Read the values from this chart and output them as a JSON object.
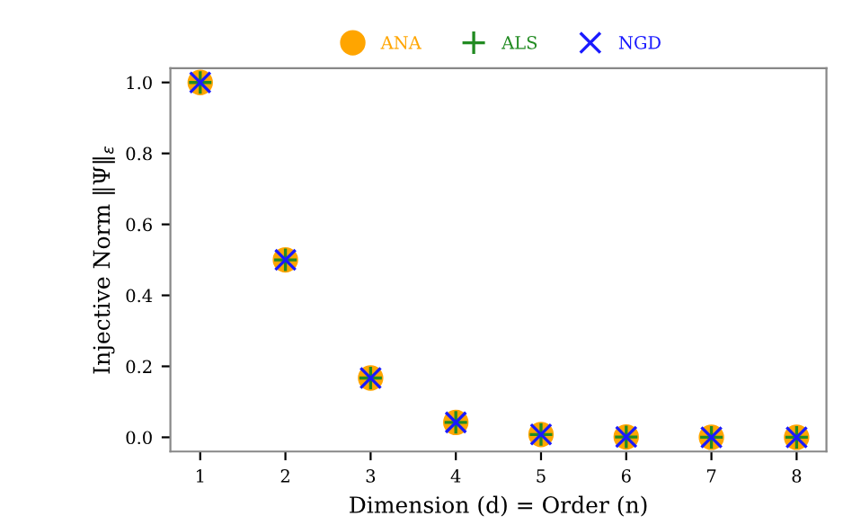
{
  "chart_data": {
    "type": "scatter",
    "xlabel": "Dimension (d) = Order (n)",
    "ylabel": "Injective Norm ‖Ψ‖$_{ε}$",
    "x": [
      1,
      2,
      3,
      4,
      5,
      6,
      7,
      8
    ],
    "series": [
      {
        "name": "ANA",
        "color": "#ffa500",
        "marker": "circle",
        "values": [
          1.0,
          0.5,
          0.167,
          0.042,
          0.008,
          0.001,
          0.0,
          0.0
        ]
      },
      {
        "name": "ALS",
        "color": "#228b22",
        "marker": "cross",
        "values": [
          1.0,
          0.5,
          0.167,
          0.042,
          0.008,
          0.001,
          0.0,
          0.0
        ]
      },
      {
        "name": "NGD",
        "color": "#1a1aff",
        "marker": "x",
        "values": [
          1.0,
          0.5,
          0.167,
          0.042,
          0.008,
          0.001,
          0.0,
          0.0
        ]
      }
    ],
    "xlim": [
      0.65,
      8.35
    ],
    "xticks": [
      1,
      2,
      3,
      4,
      5,
      6,
      7,
      8
    ],
    "ylim": [
      -0.04,
      1.04
    ],
    "yticks": [
      {
        "value": 0,
        "label": "0.0"
      },
      {
        "value": 0.2,
        "label": "0.2"
      },
      {
        "value": 0.4,
        "label": "0.4"
      },
      {
        "value": 0.6,
        "label": "0.6"
      },
      {
        "value": 0.8,
        "label": "0.8"
      },
      {
        "value": 1,
        "label": "1.0"
      }
    ],
    "grid": false,
    "legend": "top"
  }
}
